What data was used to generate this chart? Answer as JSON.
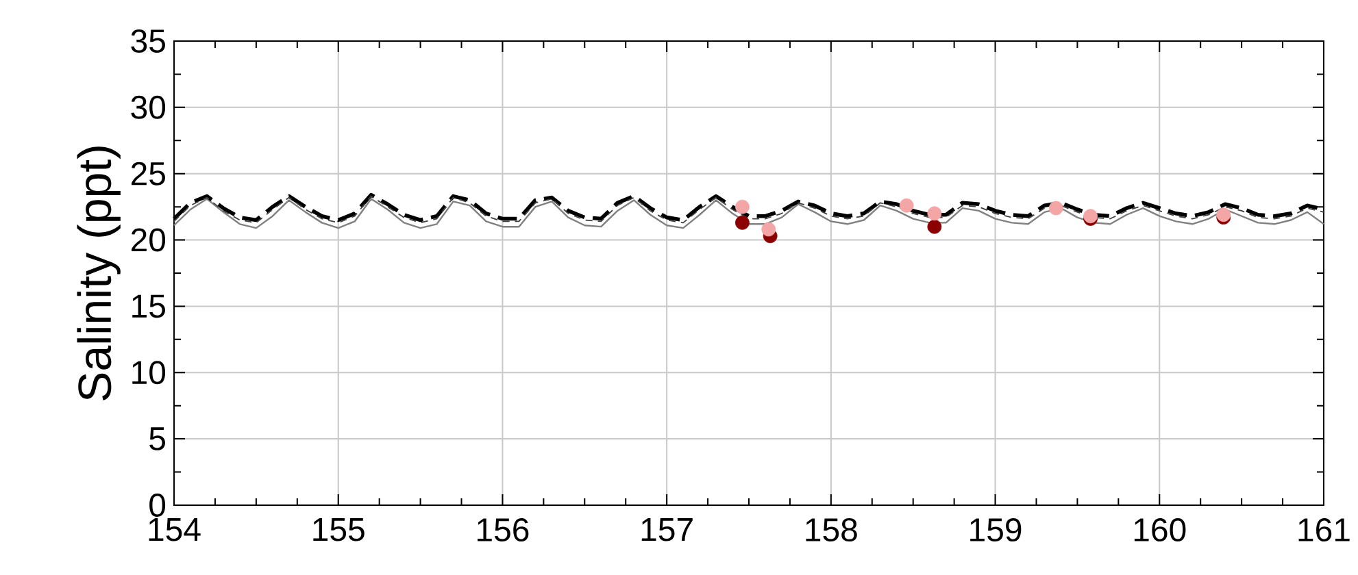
{
  "chart_data": {
    "type": "line",
    "ylabel": "Salinity (ppt)",
    "xlim": [
      154,
      161
    ],
    "ylim": [
      0,
      35
    ],
    "xticks": [
      154,
      155,
      156,
      157,
      158,
      159,
      160,
      161
    ],
    "yticks": [
      0,
      5,
      10,
      15,
      20,
      25,
      30,
      35
    ],
    "grid": true,
    "x": [
      154.0,
      154.1,
      154.2,
      154.3,
      154.4,
      154.5,
      154.6,
      154.7,
      154.8,
      154.9,
      155.0,
      155.1,
      155.2,
      155.3,
      155.4,
      155.5,
      155.6,
      155.7,
      155.8,
      155.9,
      156.0,
      156.1,
      156.2,
      156.3,
      156.4,
      156.5,
      156.6,
      156.7,
      156.8,
      156.9,
      157.0,
      157.1,
      157.2,
      157.3,
      157.4,
      157.5,
      157.6,
      157.7,
      157.8,
      157.9,
      158.0,
      158.1,
      158.2,
      158.3,
      158.4,
      158.5,
      158.6,
      158.7,
      158.8,
      158.9,
      159.0,
      159.1,
      159.2,
      159.3,
      159.4,
      159.5,
      159.6,
      159.7,
      159.8,
      159.9,
      160.0,
      160.1,
      160.2,
      160.3,
      160.4,
      160.5,
      160.6,
      160.7,
      160.8,
      160.9,
      161.0
    ],
    "series": [
      {
        "color": "#808080",
        "line_style": "solid",
        "values": [
          21.1,
          22.3,
          23.1,
          22.1,
          21.2,
          20.9,
          21.8,
          23.0,
          22.1,
          21.3,
          20.9,
          21.4,
          23.1,
          22.3,
          21.3,
          20.9,
          21.2,
          22.9,
          22.6,
          21.4,
          21.0,
          21.0,
          22.5,
          22.9,
          21.7,
          21.1,
          21.0,
          22.2,
          23.0,
          21.9,
          21.1,
          20.9,
          21.9,
          23.0,
          22.0,
          21.2,
          21.2,
          21.7,
          22.7,
          22.1,
          21.4,
          21.2,
          21.5,
          22.6,
          22.2,
          21.6,
          21.3,
          21.3,
          22.4,
          22.2,
          21.6,
          21.3,
          21.2,
          22.1,
          22.4,
          21.7,
          21.3,
          21.2,
          21.9,
          22.4,
          21.8,
          21.4,
          21.2,
          21.6,
          22.3,
          21.8,
          21.3,
          21.2,
          21.5,
          22.1,
          21.2
        ]
      },
      {
        "color": "#000000",
        "line_style": "dashed",
        "values": [
          21.6,
          22.8,
          23.3,
          22.4,
          21.7,
          21.5,
          22.5,
          23.3,
          22.5,
          21.8,
          21.5,
          22.0,
          23.4,
          22.7,
          21.9,
          21.5,
          21.8,
          23.3,
          23.0,
          22.0,
          21.6,
          21.6,
          23.0,
          23.2,
          22.2,
          21.7,
          21.6,
          22.8,
          23.3,
          22.4,
          21.7,
          21.5,
          22.5,
          23.3,
          22.5,
          21.8,
          21.8,
          22.2,
          22.9,
          22.6,
          22.0,
          21.8,
          22.0,
          22.9,
          22.7,
          22.2,
          21.9,
          21.9,
          22.8,
          22.7,
          22.2,
          21.9,
          21.8,
          22.6,
          22.8,
          22.3,
          21.9,
          21.8,
          22.4,
          22.8,
          22.4,
          22.0,
          21.8,
          22.1,
          22.7,
          22.4,
          21.9,
          21.8,
          22.0,
          22.6,
          22.3
        ]
      },
      {
        "color": "#404040",
        "line_style": "dashed",
        "values": [
          21.4,
          22.6,
          23.2,
          22.2,
          21.5,
          21.3,
          22.3,
          23.2,
          22.3,
          21.6,
          21.3,
          21.8,
          23.3,
          22.5,
          21.7,
          21.3,
          21.6,
          23.2,
          22.8,
          21.8,
          21.4,
          21.4,
          22.8,
          23.1,
          22.0,
          21.5,
          21.4,
          22.6,
          23.2,
          22.2,
          21.5,
          21.3,
          22.3,
          23.2,
          22.3,
          21.6,
          21.6,
          22.0,
          22.8,
          22.4,
          21.8,
          21.6,
          21.8,
          22.8,
          22.5,
          22.0,
          21.7,
          21.7,
          22.6,
          22.5,
          22.0,
          21.7,
          21.6,
          22.4,
          22.6,
          22.1,
          21.7,
          21.6,
          22.2,
          22.6,
          22.2,
          21.8,
          21.6,
          21.9,
          22.5,
          22.2,
          21.7,
          21.6,
          21.8,
          22.4,
          22.1
        ]
      },
      {
        "type": "scatter",
        "marker": "circle",
        "color": "#8b0000",
        "x": [
          157.46,
          157.63,
          158.46,
          158.63,
          159.37,
          159.58,
          160.39
        ],
        "values": [
          21.3,
          20.3,
          null,
          21.0,
          null,
          21.6,
          21.7
        ]
      },
      {
        "type": "scatter",
        "marker": "circle",
        "color": "#f4a6a6",
        "x": [
          157.46,
          157.62,
          158.46,
          158.63,
          159.37,
          159.58,
          160.39
        ],
        "values": [
          22.5,
          20.8,
          22.6,
          22.0,
          22.4,
          21.8,
          21.9
        ]
      }
    ]
  }
}
